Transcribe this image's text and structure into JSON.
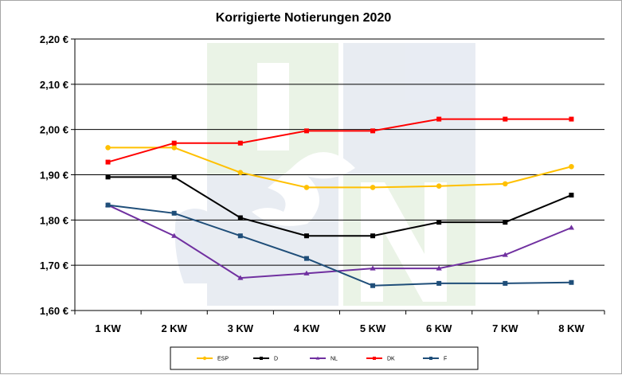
{
  "chart_data": {
    "type": "line",
    "title": "Korrigierte Notierungen 2020",
    "categories": [
      "1 KW",
      "2 KW",
      "3 KW",
      "4 KW",
      "5 KW",
      "6 KW",
      "7 KW",
      "8 KW"
    ],
    "ylim": [
      1.6,
      2.2
    ],
    "yticks": [
      "1,60 €",
      "1,70 €",
      "1,80 €",
      "1,90 €",
      "2,00 €",
      "2,10 €",
      "2,20 €"
    ],
    "grid": true,
    "legend_position": "bottom",
    "watermark": "ISN",
    "series": [
      {
        "name": "ESP",
        "color": "#ffc000",
        "marker": "circle",
        "values": [
          1.96,
          1.96,
          1.905,
          1.872,
          1.872,
          1.875,
          1.88,
          1.918
        ]
      },
      {
        "name": "D",
        "color": "#000000",
        "marker": "square",
        "values": [
          1.895,
          1.895,
          1.805,
          1.765,
          1.765,
          1.795,
          1.795,
          1.855
        ]
      },
      {
        "name": "NL",
        "color": "#7030a0",
        "marker": "triangle",
        "values": [
          1.833,
          1.765,
          1.672,
          1.682,
          1.693,
          1.693,
          1.723,
          1.783
        ]
      },
      {
        "name": "DK",
        "color": "#ff0000",
        "marker": "square",
        "values": [
          1.928,
          1.97,
          1.97,
          1.997,
          1.997,
          2.023,
          2.023,
          2.023
        ]
      },
      {
        "name": "F",
        "color": "#1f4e79",
        "marker": "square",
        "values": [
          1.833,
          1.815,
          1.765,
          1.715,
          1.655,
          1.66,
          1.66,
          1.662
        ]
      }
    ]
  }
}
